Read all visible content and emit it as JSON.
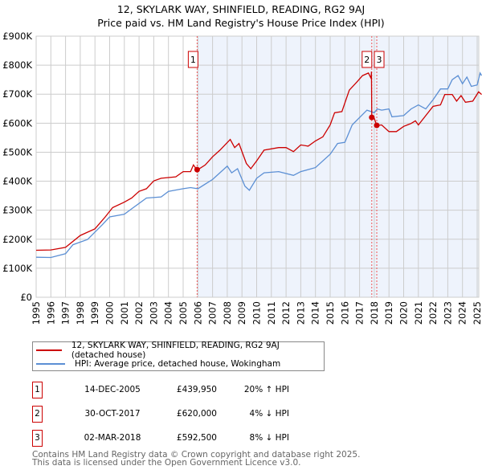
{
  "header": {
    "title_line1": "12, SKYLARK WAY, SHINFIELD, READING, RG2 9AJ",
    "title_line2": "Price paid vs. HM Land Registry's House Price Index (HPI)"
  },
  "chart_data": {
    "type": "line",
    "title": "Price paid vs. HM Land Registry's House Price Index (HPI)",
    "xlim": [
      1995,
      2025.1
    ],
    "ylim": [
      0,
      900000
    ],
    "yticks": [
      {
        "v": 0,
        "label": "£0"
      },
      {
        "v": 100000,
        "label": "£100K"
      },
      {
        "v": 200000,
        "label": "£200K"
      },
      {
        "v": 300000,
        "label": "£300K"
      },
      {
        "v": 400000,
        "label": "£400K"
      },
      {
        "v": 500000,
        "label": "£500K"
      },
      {
        "v": 600000,
        "label": "£600K"
      },
      {
        "v": 700000,
        "label": "£700K"
      },
      {
        "v": 800000,
        "label": "£800K"
      },
      {
        "v": 900000,
        "label": "£900K"
      }
    ],
    "xticks": [
      "1995",
      "1996",
      "1997",
      "1998",
      "1999",
      "2000",
      "2001",
      "2002",
      "2003",
      "2004",
      "2005",
      "2006",
      "2007",
      "2008",
      "2009",
      "2010",
      "2011",
      "2012",
      "2013",
      "2014",
      "2015",
      "2016",
      "2017",
      "2018",
      "2019",
      "2020",
      "2021",
      "2022",
      "2023",
      "2024",
      "2025"
    ],
    "grid": true,
    "colors": {
      "property": "#cc0000",
      "hpi": "#5b8fd4",
      "shade": "#eef3fc",
      "marker": "#cc0000"
    },
    "series": [
      {
        "name": "12, SKYLARK WAY, SHINFIELD, READING, RG2 9AJ (detached house)",
        "key": "property",
        "x": [
          1995,
          1996,
          1997,
          1998,
          1999,
          1999.7,
          2000.2,
          2001,
          2001.5,
          2002,
          2002.5,
          2003,
          2003.5,
          2004.5,
          2005,
          2005.5,
          2005.7,
          2005.95,
          2006.5,
          2007,
          2007.5,
          2008.2,
          2008.5,
          2008.8,
          2009.3,
          2009.6,
          2010,
          2010.5,
          2011.5,
          2012,
          2012.5,
          2013,
          2013.5,
          2014,
          2014.5,
          2015,
          2015.3,
          2015.8,
          2016.3,
          2016.8,
          2017.2,
          2017.6,
          2017.78,
          2017.81,
          2017.83,
          2018,
          2018.17,
          2018.5,
          2019,
          2019.5,
          2020,
          2020.5,
          2020.8,
          2021,
          2021.5,
          2022,
          2022.5,
          2022.8,
          2023.3,
          2023.6,
          2023.9,
          2024.2,
          2024.7,
          2025.1,
          2025.3
        ],
        "y": [
          162,
          163,
          172,
          213,
          236,
          277,
          309,
          328,
          342,
          365,
          374,
          401,
          410,
          415,
          433,
          433,
          456,
          438,
          456,
          484,
          507,
          544,
          516,
          530,
          461,
          443,
          470,
          507,
          516,
          516,
          502,
          525,
          521,
          539,
          553,
          594,
          636,
          640,
          714,
          741,
          764,
          773,
          755,
          778,
          620,
          617,
          592,
          594,
          571,
          571,
          589,
          599,
          608,
          594,
          626,
          658,
          663,
          699,
          699,
          676,
          695,
          672,
          676,
          708,
          699
        ]
      },
      {
        "name": "HPI: Average price, detached house, Wokingham",
        "key": "hpi",
        "x": [
          1995,
          1996,
          1997,
          1997.5,
          1998.5,
          1999.5,
          2000,
          2001,
          2001.5,
          2002.5,
          2003.5,
          2004,
          2005,
          2005.5,
          2006,
          2007,
          2008,
          2008.3,
          2008.7,
          2009.2,
          2009.5,
          2010,
          2010.5,
          2011.5,
          2012.5,
          2013,
          2014,
          2015,
          2015.5,
          2016,
          2016.5,
          2017.5,
          2018,
          2018.2,
          2018.5,
          2019,
          2019.2,
          2020,
          2020.5,
          2021,
          2021.5,
          2022,
          2022.5,
          2023,
          2023.3,
          2023.7,
          2024,
          2024.3,
          2024.6,
          2025,
          2025.2,
          2025.3
        ],
        "y": [
          138,
          137,
          150,
          181,
          199,
          250,
          277,
          286,
          305,
          342,
          346,
          365,
          374,
          378,
          374,
          406,
          452,
          429,
          443,
          383,
          369,
          410,
          429,
          433,
          420,
          433,
          447,
          493,
          530,
          534,
          594,
          645,
          636,
          649,
          645,
          649,
          622,
          626,
          649,
          663,
          649,
          681,
          718,
          718,
          750,
          764,
          736,
          759,
          727,
          732,
          773,
          764
        ]
      }
    ],
    "sales": [
      {
        "id": "1",
        "x": 2005.95,
        "price": 439950,
        "date": "14-DEC-2005",
        "price_label": "£439,950",
        "hpi_label": "20% ↑ HPI"
      },
      {
        "id": "2",
        "x": 2017.83,
        "price": 620000,
        "date": "30-OCT-2017",
        "price_label": "£620,000",
        "hpi_label": "4% ↓ HPI"
      },
      {
        "id": "3",
        "x": 2018.17,
        "price": 592500,
        "date": "02-MAR-2018",
        "price_label": "£592,500",
        "hpi_label": "8% ↓ HPI"
      }
    ]
  },
  "legend": {
    "property": "12, SKYLARK WAY, SHINFIELD, READING, RG2 9AJ (detached house)",
    "hpi": "HPI: Average price, detached house, Wokingham"
  },
  "footer": {
    "line1": "Contains HM Land Registry data © Crown copyright and database right 2025.",
    "line2": "This data is licensed under the Open Government Licence v3.0."
  }
}
